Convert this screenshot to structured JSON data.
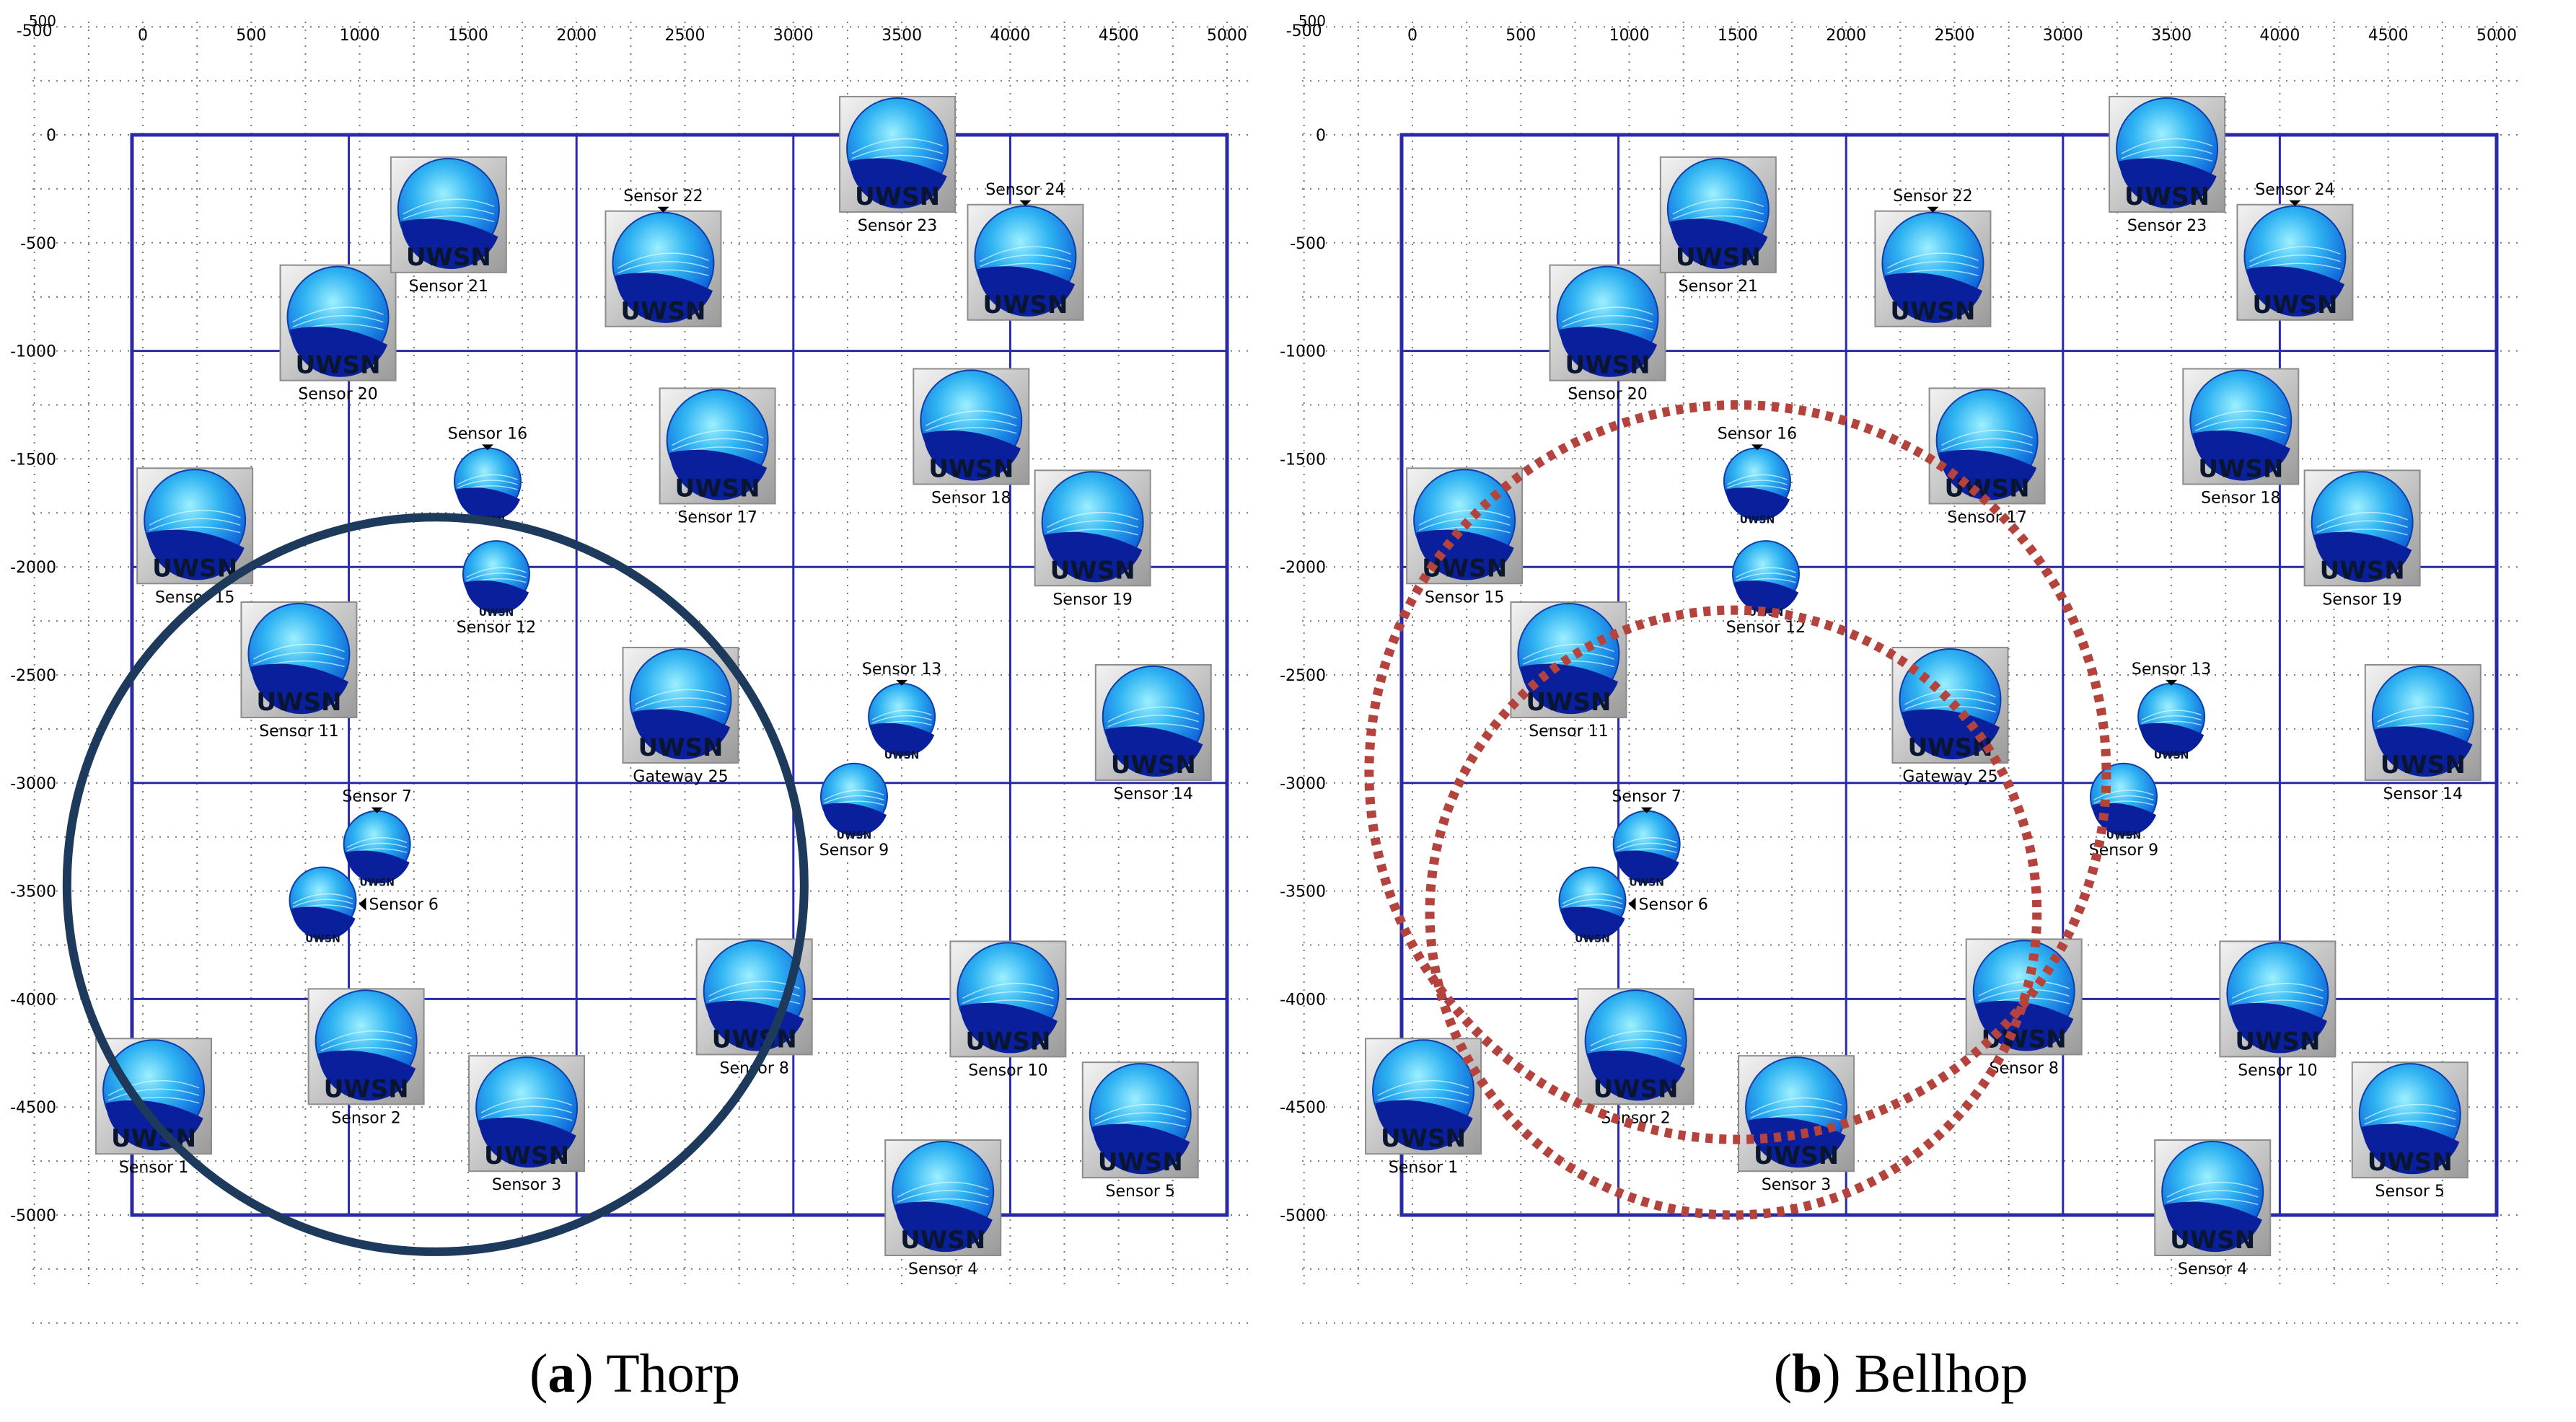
{
  "axes": {
    "x_ticks": [
      "0",
      "500",
      "1000",
      "1500",
      "2000",
      "2500",
      "3000",
      "3500",
      "4000",
      "4500",
      "5000"
    ],
    "y_ticks": [
      "0",
      "-500",
      "-1000",
      "-1500",
      "-2000",
      "-2500",
      "-3000",
      "-3500",
      "-4000",
      "-4500",
      "-5000"
    ],
    "x_min_label": "-500",
    "y_top_label": "500",
    "x_range": [
      -500,
      5000
    ],
    "y_range": [
      -5400,
      500
    ]
  },
  "icon_text": "UWSN",
  "colors": {
    "grid": "#2a2aa6",
    "range_circle": "#1d3a5c",
    "dotted_circle": "#b5433d"
  },
  "nodes": [
    {
      "id": "sensor-1",
      "label": "Sensor 1",
      "x": 50,
      "y": -4450,
      "size": "big",
      "label_pos": "below"
    },
    {
      "id": "sensor-2",
      "label": "Sensor 2",
      "x": 1030,
      "y": -4220,
      "size": "big",
      "label_pos": "below"
    },
    {
      "id": "sensor-3",
      "label": "Sensor 3",
      "x": 1770,
      "y": -4530,
      "size": "big",
      "label_pos": "below"
    },
    {
      "id": "sensor-4",
      "label": "Sensor 4",
      "x": 3690,
      "y": -4920,
      "size": "big",
      "label_pos": "below"
    },
    {
      "id": "sensor-5",
      "label": "Sensor 5",
      "x": 4600,
      "y": -4560,
      "size": "big",
      "label_pos": "below"
    },
    {
      "id": "sensor-6",
      "label": "Sensor 6",
      "x": 830,
      "y": -3560,
      "size": "small",
      "label_pos": "right"
    },
    {
      "id": "sensor-7",
      "label": "Sensor 7",
      "x": 1080,
      "y": -3300,
      "size": "small",
      "label_pos": "above"
    },
    {
      "id": "sensor-8",
      "label": "Sensor 8",
      "x": 2820,
      "y": -3990,
      "size": "big",
      "label_pos": "below"
    },
    {
      "id": "sensor-9",
      "label": "Sensor 9",
      "x": 3280,
      "y": -3080,
      "size": "small",
      "label_pos": "below"
    },
    {
      "id": "sensor-10",
      "label": "Sensor 10",
      "x": 3990,
      "y": -4000,
      "size": "big",
      "label_pos": "below"
    },
    {
      "id": "sensor-11",
      "label": "Sensor 11",
      "x": 720,
      "y": -2430,
      "size": "big",
      "label_pos": "below"
    },
    {
      "id": "sensor-12",
      "label": "Sensor 12",
      "x": 1630,
      "y": -2050,
      "size": "small",
      "label_pos": "below"
    },
    {
      "id": "sensor-13",
      "label": "Sensor 13",
      "x": 3500,
      "y": -2710,
      "size": "small",
      "label_pos": "above"
    },
    {
      "id": "sensor-14",
      "label": "Sensor 14",
      "x": 4660,
      "y": -2720,
      "size": "big",
      "label_pos": "below"
    },
    {
      "id": "sensor-15",
      "label": "Sensor 15",
      "x": 240,
      "y": -1810,
      "size": "big",
      "label_pos": "below"
    },
    {
      "id": "sensor-16",
      "label": "Sensor 16",
      "x": 1590,
      "y": -1620,
      "size": "small",
      "label_pos": "above"
    },
    {
      "id": "sensor-17",
      "label": "Sensor 17",
      "x": 2650,
      "y": -1440,
      "size": "big",
      "label_pos": "below"
    },
    {
      "id": "sensor-18",
      "label": "Sensor 18",
      "x": 3820,
      "y": -1350,
      "size": "big",
      "label_pos": "below"
    },
    {
      "id": "sensor-19",
      "label": "Sensor 19",
      "x": 4380,
      "y": -1820,
      "size": "big",
      "label_pos": "below"
    },
    {
      "id": "sensor-20",
      "label": "Sensor 20",
      "x": 900,
      "y": -870,
      "size": "big",
      "label_pos": "below"
    },
    {
      "id": "sensor-21",
      "label": "Sensor 21",
      "x": 1410,
      "y": -370,
      "size": "big",
      "label_pos": "below"
    },
    {
      "id": "sensor-22",
      "label": "Sensor 22",
      "x": 2400,
      "y": -620,
      "size": "big",
      "label_pos": "above"
    },
    {
      "id": "sensor-23",
      "label": "Sensor 23",
      "x": 3480,
      "y": -90,
      "size": "big",
      "label_pos": "below"
    },
    {
      "id": "sensor-24",
      "label": "Sensor 24",
      "x": 4070,
      "y": -590,
      "size": "big",
      "label_pos": "above"
    },
    {
      "id": "gateway-25",
      "label": "Gateway 25",
      "x": 2480,
      "y": -2640,
      "size": "big",
      "label_pos": "below"
    }
  ],
  "panels": [
    {
      "id": "a",
      "caption_letter": "a",
      "caption_name": "Thorp",
      "circles": [
        {
          "cx": 1350,
          "cy": -3470,
          "r": 1700,
          "style": "solid"
        }
      ]
    },
    {
      "id": "b",
      "caption_letter": "b",
      "caption_name": "Bellhop",
      "circles": [
        {
          "cx": 1500,
          "cy": -2950,
          "r": 1700,
          "style": "dotted"
        },
        {
          "cx": 1480,
          "cy": -3600,
          "r": 1400,
          "style": "dotted"
        }
      ]
    }
  ]
}
